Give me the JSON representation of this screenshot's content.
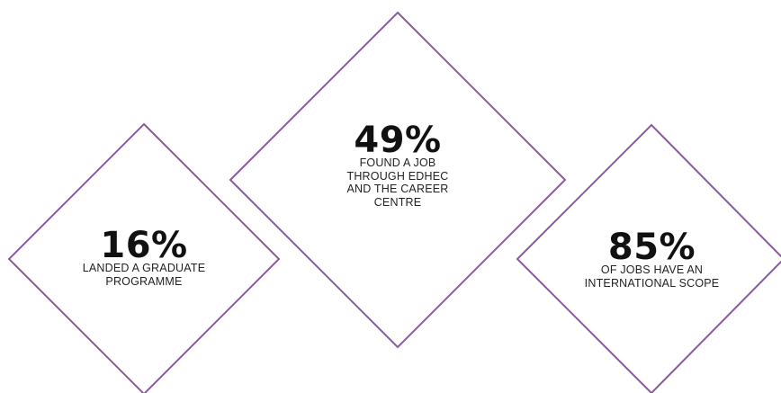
{
  "theme": {
    "outline_color": "#8a5a9e",
    "text_color": "#111111"
  },
  "stats": [
    {
      "value": "16%",
      "line1": "LANDED A GRADUATE",
      "line2": "PROGRAMME",
      "line3": "",
      "line4": ""
    },
    {
      "value": "49%",
      "line1": "FOUND A JOB",
      "line2": "THROUGH EDHEC",
      "line3": "AND THE CAREER",
      "line4": "CENTRE"
    },
    {
      "value": "85%",
      "line1": "OF JOBS HAVE AN",
      "line2": "INTERNATIONAL SCOPE",
      "line3": "",
      "line4": ""
    }
  ]
}
